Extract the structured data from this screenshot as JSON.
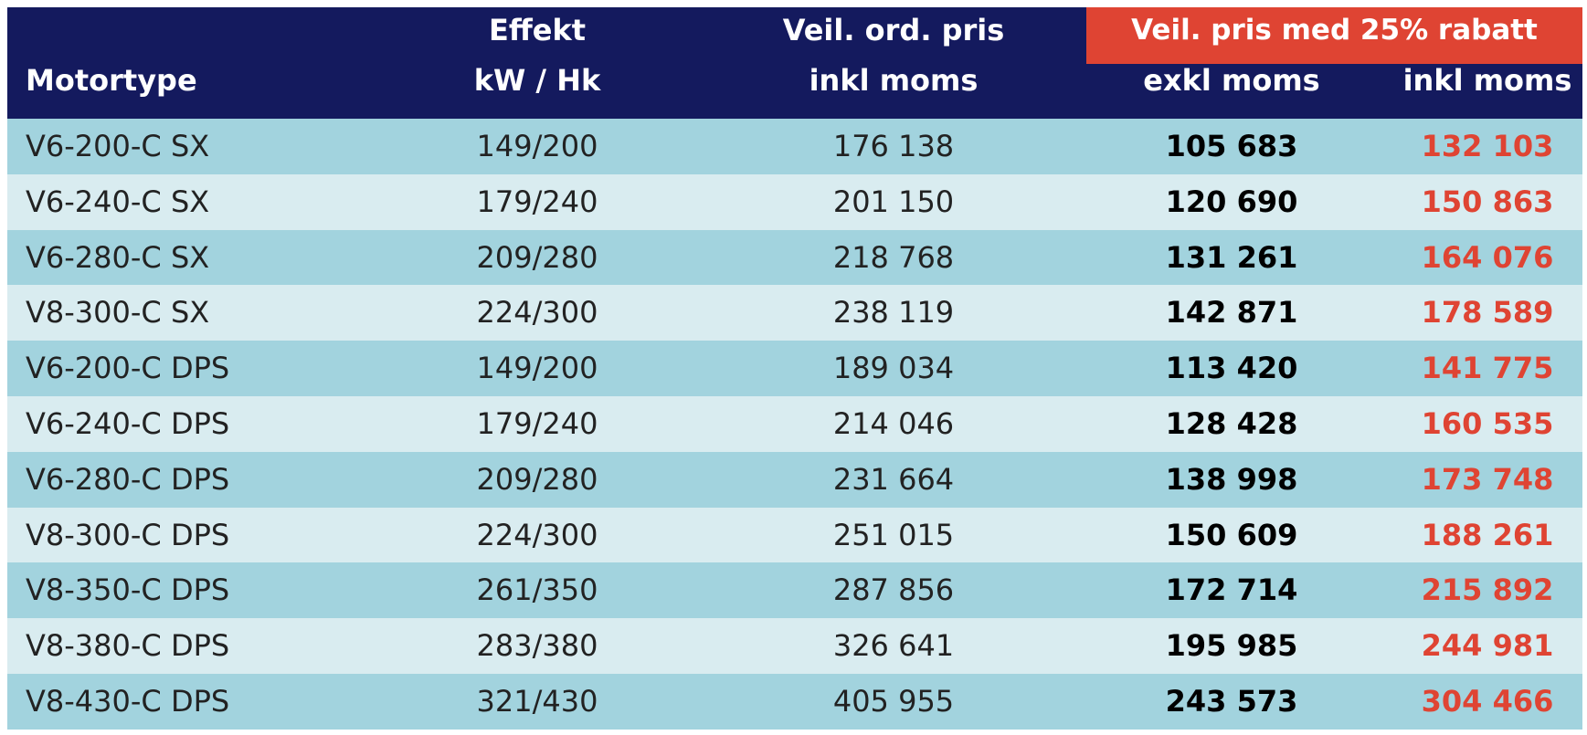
{
  "colors": {
    "header_bg": "#141a5e",
    "accent_red": "#df4433",
    "row_dark": "#a2d3de",
    "row_light": "#d9ecf0"
  },
  "header": {
    "motortype": "Motortype",
    "effect_line1": "Effekt",
    "effect_line2": "kW / Hk",
    "ord_line1": "Veil. ord. pris",
    "ord_line2": "inkl moms",
    "discount_title": "Veil. pris med 25% rabatt",
    "exkl": "exkl moms",
    "inkl": "inkl moms"
  },
  "rows": [
    {
      "type": "V6-200-C SX",
      "effect": "149/200",
      "ord": "176 138",
      "exkl": "105 683",
      "inkl": "132 103"
    },
    {
      "type": "V6-240-C SX",
      "effect": "179/240",
      "ord": "201 150",
      "exkl": "120 690",
      "inkl": "150 863"
    },
    {
      "type": "V6-280-C SX",
      "effect": "209/280",
      "ord": "218 768",
      "exkl": "131 261",
      "inkl": "164 076"
    },
    {
      "type": "V8-300-C SX",
      "effect": "224/300",
      "ord": "238 119",
      "exkl": "142 871",
      "inkl": "178 589"
    },
    {
      "type": "V6-200-C DPS",
      "effect": "149/200",
      "ord": "189 034",
      "exkl": "113 420",
      "inkl": "141 775"
    },
    {
      "type": "V6-240-C DPS",
      "effect": "179/240",
      "ord": "214 046",
      "exkl": "128 428",
      "inkl": "160 535"
    },
    {
      "type": "V6-280-C DPS",
      "effect": "209/280",
      "ord": "231 664",
      "exkl": "138 998",
      "inkl": "173 748"
    },
    {
      "type": "V8-300-C DPS",
      "effect": "224/300",
      "ord": "251 015",
      "exkl": "150 609",
      "inkl": "188 261"
    },
    {
      "type": "V8-350-C DPS",
      "effect": "261/350",
      "ord": "287 856",
      "exkl": "172 714",
      "inkl": "215 892"
    },
    {
      "type": "V8-380-C DPS",
      "effect": "283/380",
      "ord": "326 641",
      "exkl": "195 985",
      "inkl": "244 981"
    },
    {
      "type": "V8-430-C DPS",
      "effect": "321/430",
      "ord": "405 955",
      "exkl": "243 573",
      "inkl": "304 466"
    }
  ]
}
